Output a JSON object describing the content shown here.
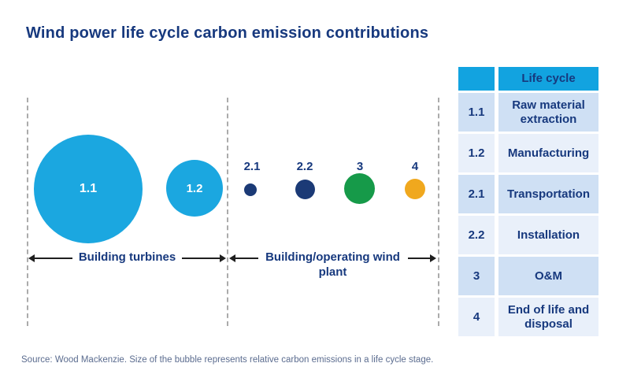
{
  "title": "Wind power life cycle carbon emission contributions",
  "source_note": "Source: Wood Mackenzie. Size of the bubble represents relative carbon emissions in a life cycle stage.",
  "colors": {
    "title_navy": "#17397E",
    "bubble_light_blue": "#1BA7E0",
    "bubble_navy": "#1B3A76",
    "bubble_green": "#169A49",
    "bubble_yellow": "#F0A81E",
    "table_header_bg": "#12A3E0",
    "table_row_dark": "#CFE0F4",
    "table_row_light": "#E9F0FA",
    "source_text": "#5B6C8F",
    "dashed_line": "#ABABAB",
    "arrow": "#1F1F1F"
  },
  "chart_data": {
    "type": "bubble",
    "title": "Wind power life cycle carbon emission contributions",
    "note": "Size of the bubble represents relative carbon emissions in a life cycle stage; no numeric values are labeled, sizes read from pixels",
    "groups": [
      {
        "label": "Building turbines",
        "stages": [
          "1.1",
          "1.2"
        ]
      },
      {
        "label": "Building/operating wind plant",
        "stages": [
          "2.1",
          "2.2",
          "3",
          "4"
        ]
      }
    ],
    "bubbles": [
      {
        "stage": "1.1",
        "name": "Raw material extraction",
        "radius_px": 69,
        "relative_area": 100,
        "color": "#1BA7E0",
        "label_placement": "inside"
      },
      {
        "stage": "1.2",
        "name": "Manufacturing",
        "radius_px": 36,
        "relative_area": 27,
        "color": "#1BA7E0",
        "label_placement": "inside"
      },
      {
        "stage": "2.1",
        "name": "Transportation",
        "radius_px": 8,
        "relative_area": 1.3,
        "color": "#1B3A76",
        "label_placement": "above"
      },
      {
        "stage": "2.2",
        "name": "Installation",
        "radius_px": 13,
        "relative_area": 3.5,
        "color": "#1B3A76",
        "label_placement": "above"
      },
      {
        "stage": "3",
        "name": "O&M",
        "radius_px": 19,
        "relative_area": 7.6,
        "color": "#169A49",
        "label_placement": "above"
      },
      {
        "stage": "4",
        "name": "End of life and disposal",
        "radius_px": 13,
        "relative_area": 3.5,
        "color": "#F0A81E",
        "label_placement": "above"
      }
    ]
  },
  "table": {
    "header": [
      "",
      "Life cycle"
    ],
    "rows": [
      [
        "1.1",
        "Raw material extraction"
      ],
      [
        "1.2",
        "Manufacturing"
      ],
      [
        "2.1",
        "Transportation"
      ],
      [
        "2.2",
        "Installation"
      ],
      [
        "3",
        "O&M"
      ],
      [
        "4",
        "End of life and disposal"
      ]
    ]
  }
}
